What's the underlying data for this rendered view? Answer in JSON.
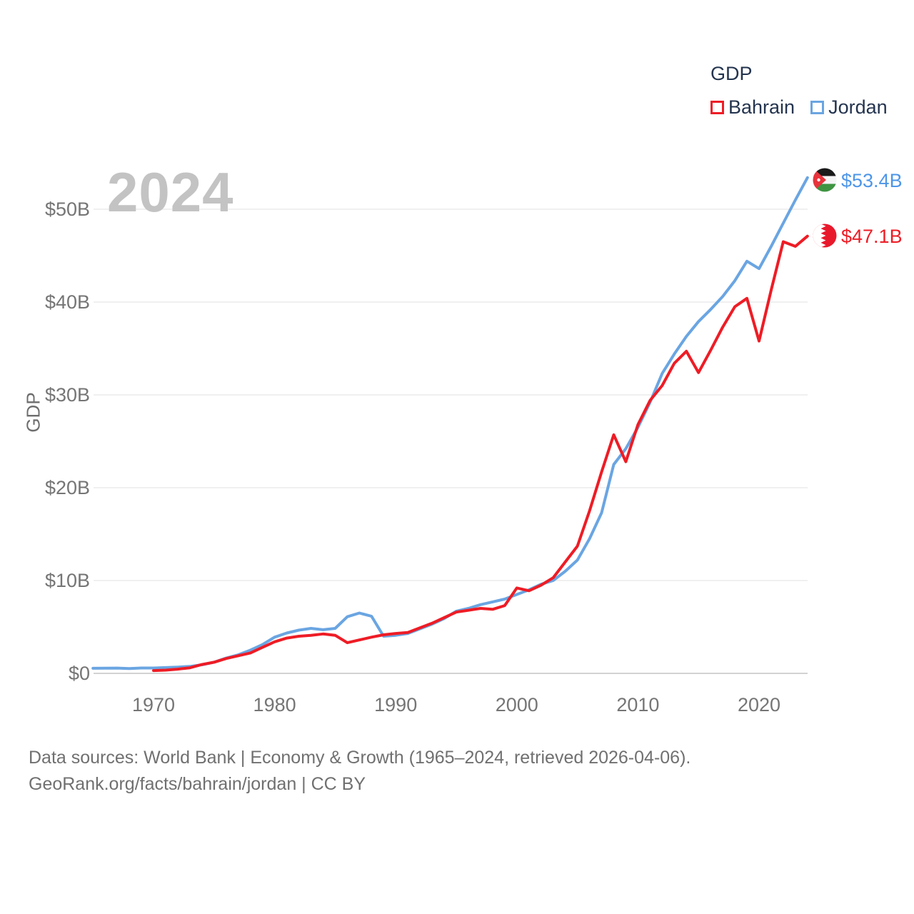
{
  "watermark": {
    "year": "2024"
  },
  "legend": {
    "title": "GDP",
    "items": [
      {
        "label": "Bahrain",
        "color": "#ee1c25"
      },
      {
        "label": "Jordan",
        "color": "#6aa5e2"
      }
    ]
  },
  "y_axis": {
    "title": "GDP",
    "ticks": [
      "$0",
      "$10B",
      "$20B",
      "$30B",
      "$40B",
      "$50B"
    ]
  },
  "x_axis": {
    "ticks": [
      "1970",
      "1980",
      "1990",
      "2000",
      "2010",
      "2020"
    ]
  },
  "end_labels": [
    {
      "series": "Jordan",
      "value": "$53.4B",
      "color": "#4d96e8",
      "flag": "jordan-flag-icon"
    },
    {
      "series": "Bahrain",
      "value": "$47.1B",
      "color": "#ee1c25",
      "flag": "bahrain-flag-icon"
    }
  ],
  "footer": {
    "line1": "Data sources: World Bank | Economy & Growth (1965–2024, retrieved 2026-04-06).",
    "line2": "GeoRank.org/facts/bahrain/jordan | CC BY"
  },
  "chart_data": {
    "type": "line",
    "title": "GDP",
    "ylabel": "GDP",
    "units": "billions USD",
    "xlim": [
      1965,
      2024
    ],
    "ylim": [
      0,
      55
    ],
    "grid": "horizontal",
    "legend_position": "top-right",
    "y_ticks_billions": [
      0,
      10,
      20,
      30,
      40,
      50
    ],
    "x_ticks": [
      1970,
      1980,
      1990,
      2000,
      2010,
      2020
    ],
    "x": [
      1965,
      1966,
      1967,
      1968,
      1969,
      1970,
      1971,
      1972,
      1973,
      1974,
      1975,
      1976,
      1977,
      1978,
      1979,
      1980,
      1981,
      1982,
      1983,
      1984,
      1985,
      1986,
      1987,
      1988,
      1989,
      1990,
      1991,
      1992,
      1993,
      1994,
      1995,
      1996,
      1997,
      1998,
      1999,
      2000,
      2001,
      2002,
      2003,
      2004,
      2005,
      2006,
      2007,
      2008,
      2009,
      2010,
      2011,
      2012,
      2013,
      2014,
      2015,
      2016,
      2017,
      2018,
      2019,
      2020,
      2021,
      2022,
      2023,
      2024
    ],
    "series": [
      {
        "name": "Bahrain",
        "color": "#ee1c25",
        "start_year": 1970,
        "end_value_label": "$47.1B",
        "values": [
          0.3,
          0.35,
          0.45,
          0.6,
          0.95,
          1.2,
          1.6,
          1.9,
          2.2,
          2.8,
          3.4,
          3.8,
          4.0,
          4.1,
          4.25,
          4.1,
          3.3,
          3.6,
          3.9,
          4.15,
          4.3,
          4.4,
          4.9,
          5.4,
          6.0,
          6.6,
          6.8,
          7.0,
          6.9,
          7.3,
          9.2,
          8.9,
          9.5,
          10.3,
          12.0,
          13.7,
          17.5,
          21.7,
          25.7,
          22.8,
          26.8,
          29.4,
          31.0,
          33.4,
          34.7,
          32.4,
          34.8,
          37.3,
          39.5,
          40.4,
          35.8,
          41.3,
          46.5,
          46.0,
          47.1
        ]
      },
      {
        "name": "Jordan",
        "color": "#6aa5e2",
        "start_year": 1965,
        "end_value_label": "$53.4B",
        "values": [
          0.55,
          0.56,
          0.57,
          0.52,
          0.58,
          0.58,
          0.62,
          0.68,
          0.75,
          0.92,
          1.2,
          1.65,
          2.0,
          2.5,
          3.1,
          3.9,
          4.35,
          4.65,
          4.85,
          4.7,
          4.85,
          6.1,
          6.5,
          6.15,
          4.0,
          4.1,
          4.3,
          4.8,
          5.3,
          5.9,
          6.7,
          7.0,
          7.4,
          7.7,
          8.0,
          8.5,
          9.0,
          9.6,
          10.0,
          11.0,
          12.2,
          14.5,
          17.3,
          22.5,
          24.2,
          26.5,
          29.2,
          32.3,
          34.4,
          36.3,
          37.9,
          39.2,
          40.6,
          42.3,
          44.4,
          43.6,
          46.0,
          48.5,
          51.0,
          53.4
        ]
      }
    ]
  }
}
